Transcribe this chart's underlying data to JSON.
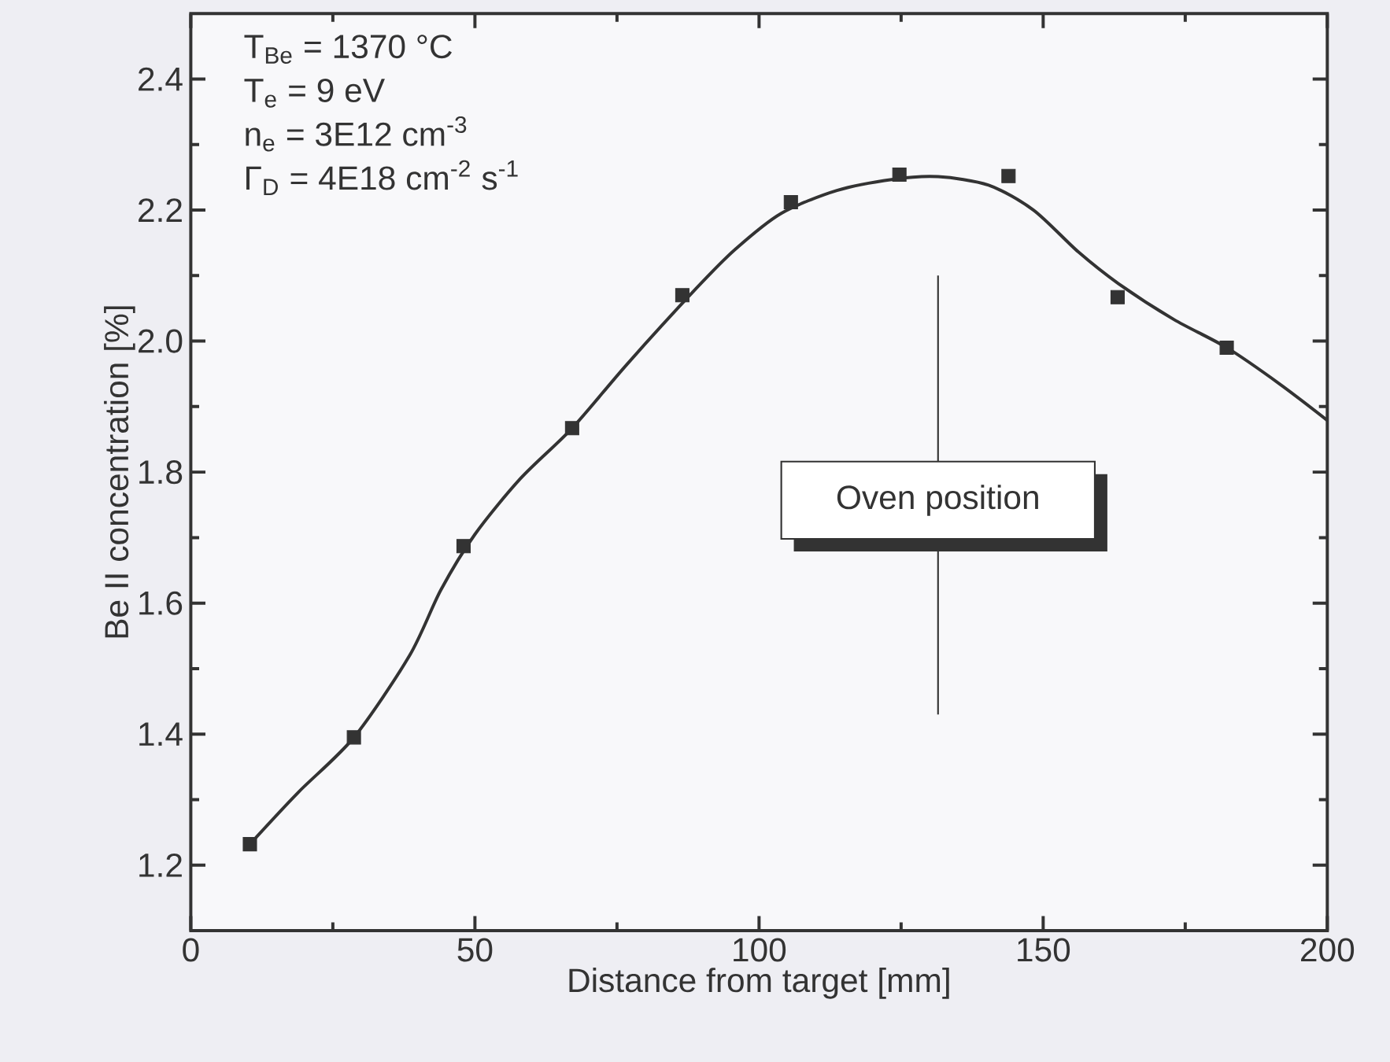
{
  "chart_data": {
    "type": "scatter",
    "xlabel": "Distance from target [mm]",
    "ylabel": "Be II concentration [%]",
    "xlim": [
      0,
      200
    ],
    "ylim": [
      1.1,
      2.5
    ],
    "xticks": [
      0,
      50,
      100,
      150,
      200
    ],
    "yticks": [
      {
        "value": 1.2,
        "label": "1.2"
      },
      {
        "value": 1.4,
        "label": "1.4"
      },
      {
        "value": 1.6,
        "label": "1.6"
      },
      {
        "value": 1.8,
        "label": "1.8"
      },
      {
        "value": 2.0,
        "label": "2.0"
      },
      {
        "value": 2.2,
        "label": "2.2"
      },
      {
        "value": 2.4,
        "label": "2.4"
      }
    ],
    "annotations": [
      "T$_{Be}$ = 1370 °C",
      "T$_{e}$ = 9 eV",
      "n$_{e}$ = 3E12 cm$^{-3}$",
      "Γ$_{D}$ = 4E18 cm$^{-2}$ s$^{-1}$"
    ],
    "ref_lines": [
      {
        "axis": "x",
        "value": 131.5,
        "label": "Oven position",
        "color": "#333333"
      }
    ],
    "series": [
      {
        "marker": "square",
        "color": "#333333",
        "x": [
          10.4,
          28.7,
          48.0,
          67.1,
          86.5,
          105.6,
          124.7,
          143.9,
          163.1,
          182.3
        ],
        "values": [
          1.232,
          1.395,
          1.687,
          1.867,
          2.07,
          2.212,
          2.254,
          2.252,
          2.067,
          1.99
        ]
      },
      {
        "type": "line",
        "marker": "none",
        "line_style": "solid",
        "color": "#333333",
        "x": [
          10.4,
          18.9,
          28.7,
          38.5,
          44.0,
          50.0,
          58.0,
          67.1,
          76.7,
          88.9,
          95.8,
          103.9,
          113.7,
          123.6,
          131.5,
          140.4,
          148.3,
          156.2,
          163.2,
          173.0,
          182.3,
          191.7,
          200
        ],
        "values": [
          1.232,
          1.311,
          1.395,
          1.52,
          1.62,
          1.705,
          1.79,
          1.867,
          1.964,
          2.08,
          2.14,
          2.195,
          2.23,
          2.247,
          2.251,
          2.238,
          2.2,
          2.136,
          2.088,
          2.033,
          1.99,
          1.934,
          1.879
        ]
      }
    ]
  }
}
